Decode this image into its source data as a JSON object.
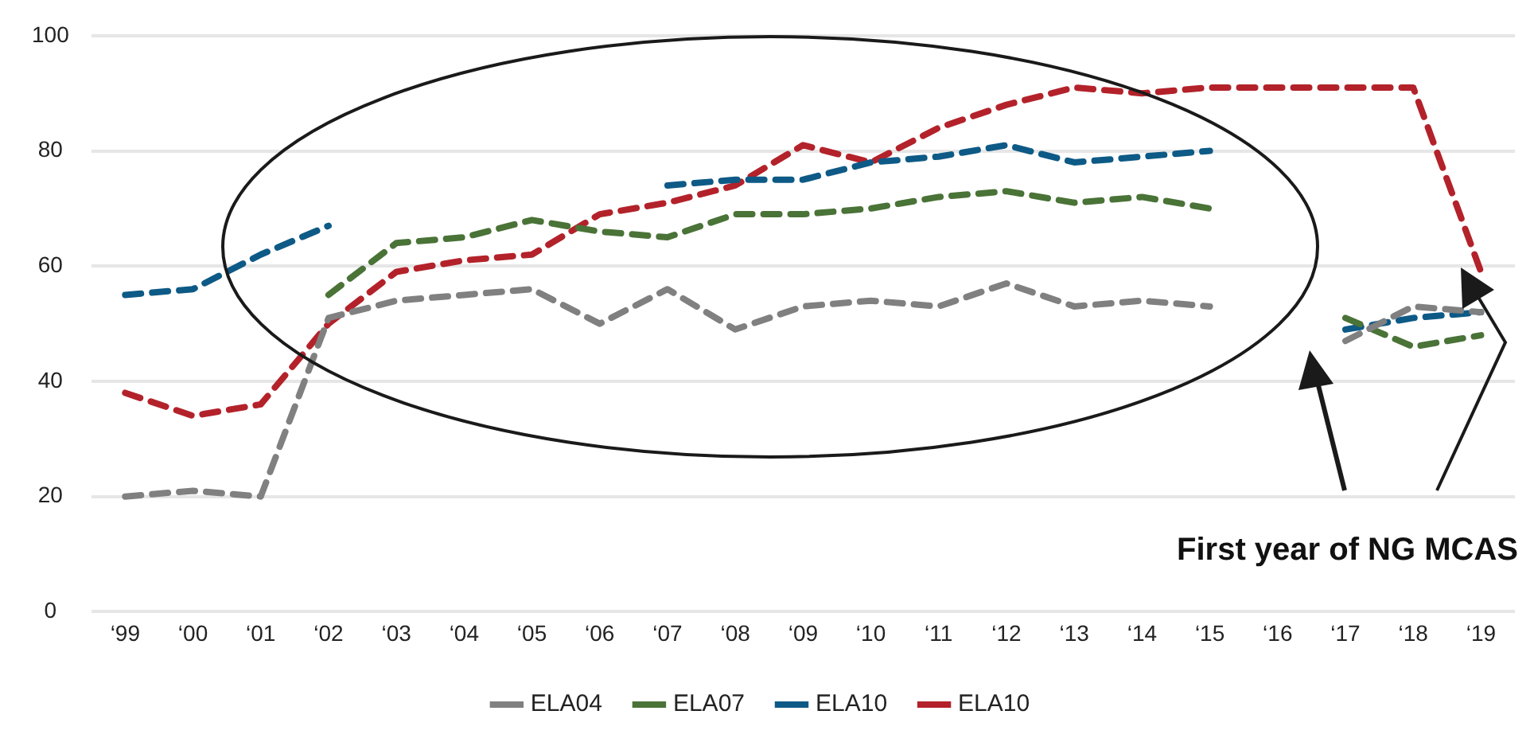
{
  "chart_data": {
    "type": "line",
    "categories": [
      "‘99",
      "‘00",
      "‘01",
      "‘02",
      "‘03",
      "‘04",
      "‘05",
      "‘06",
      "‘07",
      "‘08",
      "‘09",
      "‘10",
      "‘11",
      "‘12",
      "‘13",
      "‘14",
      "‘15",
      "‘16",
      "‘17",
      "‘18",
      "‘19"
    ],
    "ylim": [
      0,
      100
    ],
    "yticks": [
      0,
      20,
      40,
      60,
      80,
      100
    ],
    "grid": "y",
    "legend": "bottom",
    "line_style": "dashed",
    "annotations": [
      "First year of NG MCAS"
    ],
    "series": [
      {
        "name": "ELA04",
        "color": "#808080",
        "values": [
          20,
          21,
          20,
          51,
          54,
          55,
          56,
          50,
          56,
          49,
          53,
          54,
          53,
          57,
          53,
          54,
          53,
          null,
          47,
          53,
          52
        ]
      },
      {
        "name": "ELA07",
        "color": "#4a7337",
        "values": [
          null,
          null,
          null,
          55,
          64,
          65,
          68,
          66,
          65,
          69,
          69,
          70,
          72,
          73,
          71,
          72,
          70,
          null,
          51,
          46,
          48
        ]
      },
      {
        "name": "ELA10",
        "color": "#0d5a86",
        "values": [
          55,
          56,
          62,
          67,
          null,
          null,
          null,
          null,
          74,
          75,
          75,
          78,
          79,
          81,
          78,
          79,
          80,
          null,
          49,
          51,
          52
        ]
      },
      {
        "name": "ELA10",
        "color": "#b3222a",
        "values": [
          38,
          34,
          36,
          50,
          59,
          61,
          62,
          69,
          71,
          74,
          81,
          78,
          84,
          88,
          91,
          90,
          91,
          91,
          91,
          91,
          59
        ]
      }
    ]
  }
}
